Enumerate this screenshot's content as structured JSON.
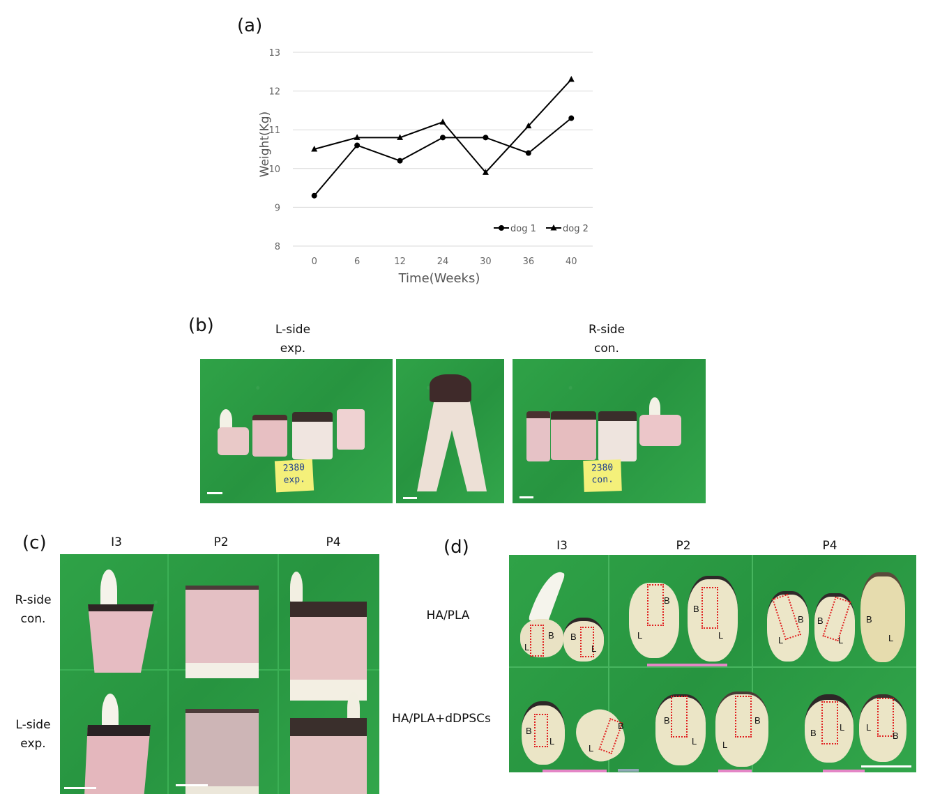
{
  "panel_labels": {
    "a": "(a)",
    "b": "(b)",
    "c": "(c)",
    "d": "(d)"
  },
  "chart_data": {
    "type": "line",
    "title": "",
    "xlabel": "Time(Weeks)",
    "ylabel": "Weight(Kg)",
    "categories": [
      "0",
      "6",
      "12",
      "24",
      "30",
      "36",
      "40"
    ],
    "ylim": [
      8,
      13
    ],
    "yticks": [
      "8",
      "9",
      "10",
      "11",
      "12",
      "13"
    ],
    "grid": "horizontal",
    "legend_position": "bottom-right",
    "series": [
      {
        "name": "dog 1",
        "marker": "circle",
        "values": [
          9.3,
          10.6,
          10.2,
          10.8,
          10.8,
          10.4,
          11.3
        ]
      },
      {
        "name": "dog 2",
        "marker": "triangle",
        "values": [
          10.5,
          10.8,
          10.8,
          11.2,
          9.9,
          11.1,
          12.3
        ]
      }
    ]
  },
  "panel_b": {
    "left_title_1": "L-side",
    "left_title_2": "exp.",
    "right_title_1": "R-side",
    "right_title_2": "con.",
    "note_left_1": "2380",
    "note_left_2": "exp.",
    "note_right_1": "2380",
    "note_right_2": "con."
  },
  "panel_c": {
    "cols": [
      "I3",
      "P2",
      "P4"
    ],
    "row1_1": "R-side",
    "row1_2": "con.",
    "row2_1": "L-side",
    "row2_2": "exp."
  },
  "panel_d": {
    "cols": [
      "I3",
      "P2",
      "P4"
    ],
    "rows": [
      "HA/PLA",
      "HA/PLA+dDPSCs"
    ],
    "marks": {
      "b": "B",
      "l": "L"
    }
  }
}
